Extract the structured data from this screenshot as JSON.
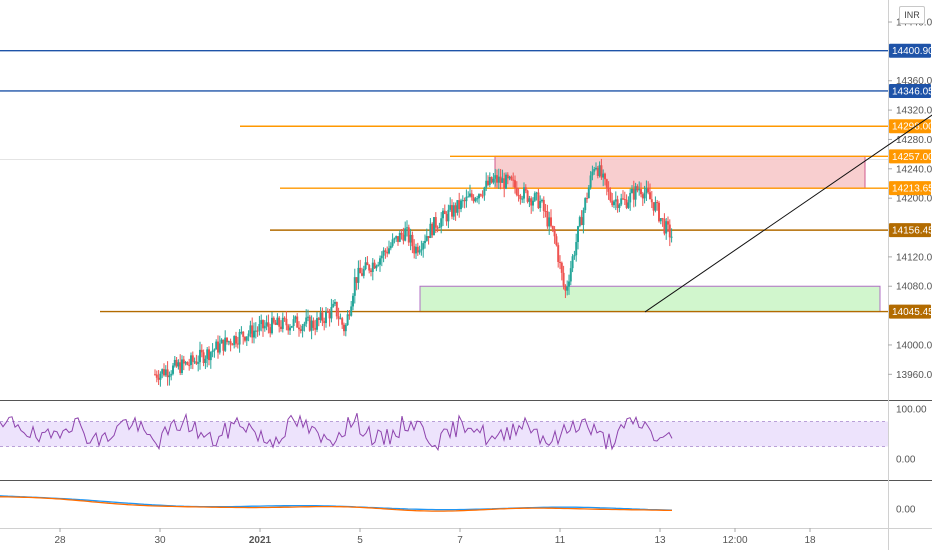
{
  "currency_label": "INR",
  "chart_data": {
    "type": "candlestick",
    "price_axis": {
      "ticks": [
        {
          "value": 14440,
          "label": "14440.00"
        },
        {
          "value": 14360,
          "label": "14360.00"
        },
        {
          "value": 14320,
          "label": "14320.00"
        },
        {
          "value": 14280,
          "label": "14280.00"
        },
        {
          "value": 14240,
          "label": "14240.00"
        },
        {
          "value": 14200,
          "label": "14200.00"
        },
        {
          "value": 14120,
          "label": "14120.00"
        },
        {
          "value": 14080,
          "label": "14080.00"
        },
        {
          "value": 14000,
          "label": "14000.00"
        },
        {
          "value": 13960,
          "label": "13960.00"
        }
      ],
      "ylim": [
        13925,
        14470
      ]
    },
    "price_levels": [
      {
        "value": 14400.9,
        "label": "14400.90",
        "color": "#1e53a8",
        "from_day": -5,
        "full": true
      },
      {
        "value": 14346.05,
        "label": "14346.05",
        "color": "#1e53a8",
        "from_day": -5,
        "full": true
      },
      {
        "value": 14298.0,
        "label": "14298.00",
        "color": "#ff9800",
        "from_day": 2.8
      },
      {
        "value": 14257.0,
        "label": "14257.00",
        "color": "#ff9800",
        "from_day": 4.9
      },
      {
        "value": 14213.65,
        "label": "14213.65",
        "color": "#ff9800",
        "from_day": 3.2
      },
      {
        "value": 14156.45,
        "label": "14156.45",
        "color": "#b26b00",
        "from_day": 3.1
      },
      {
        "value": 14045.45,
        "label": "14045.45",
        "color": "#b26b00",
        "from_day": 1.4
      }
    ],
    "last_price": {
      "value": 14148.45,
      "label": "14148.45",
      "color": "#2e7d32"
    },
    "zones": [
      {
        "name": "supply-zone",
        "from_day": 5.35,
        "to_day": 9.05,
        "top": 14257,
        "bottom": 14213.65,
        "fill": "#f7c5c7",
        "stroke": "#d05a8c"
      },
      {
        "name": "demand-zone",
        "from_day": 4.6,
        "to_day": 9.2,
        "top": 14080,
        "bottom": 14045.45,
        "fill": "#c9f5c4",
        "stroke": "#b06fc4"
      }
    ],
    "trendline": {
      "from": {
        "day": 6.85,
        "price": 14045
      },
      "to": {
        "day": 9.9,
        "price": 14330
      }
    },
    "x_axis": {
      "day_start": 1.1,
      "day_end": 12.4,
      "ticks": [
        {
          "day": 1.0,
          "label": "28"
        },
        {
          "day": 2.0,
          "label": "30"
        },
        {
          "day": 3.0,
          "label": "2021",
          "bold": true
        },
        {
          "day": 4.0,
          "label": "5"
        },
        {
          "day": 5.0,
          "label": "7"
        },
        {
          "day": 6.0,
          "label": "11"
        },
        {
          "day": 7.0,
          "label": "13"
        },
        {
          "day": 7.75,
          "label": "12:00"
        },
        {
          "day": 8.5,
          "label": "18"
        }
      ]
    },
    "candles": [],
    "candle_keypoints": [
      [
        1.95,
        13960
      ],
      [
        2.05,
        13965
      ],
      [
        2.3,
        13975
      ],
      [
        2.55,
        13995
      ],
      [
        2.75,
        14010
      ],
      [
        3.05,
        14025
      ],
      [
        3.35,
        14030
      ],
      [
        3.55,
        14028
      ],
      [
        3.75,
        14050
      ],
      [
        3.85,
        14020
      ],
      [
        3.95,
        14090
      ],
      [
        4.2,
        14120
      ],
      [
        4.45,
        14155
      ],
      [
        4.55,
        14130
      ],
      [
        4.75,
        14165
      ],
      [
        5.0,
        14190
      ],
      [
        5.2,
        14210
      ],
      [
        5.35,
        14225
      ],
      [
        5.5,
        14220
      ],
      [
        5.65,
        14205
      ],
      [
        5.8,
        14195
      ],
      [
        5.95,
        14145
      ],
      [
        6.05,
        14070
      ],
      [
        6.2,
        14165
      ],
      [
        6.35,
        14250
      ],
      [
        6.5,
        14200
      ],
      [
        6.65,
        14195
      ],
      [
        6.8,
        14215
      ],
      [
        6.95,
        14190
      ],
      [
        7.05,
        14160
      ],
      [
        7.12,
        14148.45
      ]
    ],
    "rsi": {
      "ticks": [
        {
          "value": 100,
          "label": "100.00"
        },
        {
          "value": 0,
          "label": "0.00"
        }
      ],
      "band": [
        75,
        25
      ]
    },
    "macd": {
      "ticks": [
        {
          "value": 0,
          "label": "0.00"
        }
      ]
    }
  }
}
